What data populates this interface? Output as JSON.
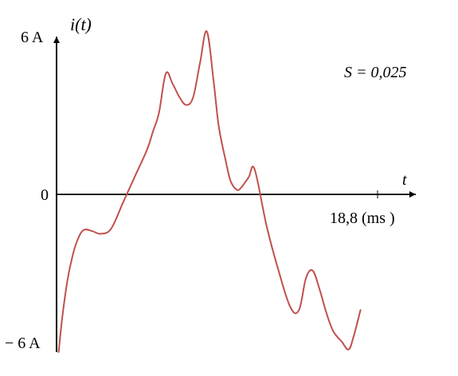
{
  "chart_data": {
    "type": "line",
    "title": "",
    "ylabel": "i(t)",
    "xlabel": "t",
    "y_tick_top": "6 A",
    "y_tick_zero": "0",
    "y_tick_bottom": "− 6 A",
    "x_tick_label": "18,8 (ms )",
    "annotation": "S = 0,025",
    "ylim": [
      -6,
      6
    ],
    "xlim": [
      0,
      18.8
    ],
    "grid": false,
    "line_color": "#c0504d",
    "series": [
      {
        "x": [
          0.12,
          0.35,
          0.63,
          0.95,
          1.25,
          1.6,
          2.1,
          2.6,
          3.2,
          3.9,
          4.6,
          5.3,
          5.65,
          6.0,
          6.4,
          6.8,
          7.2,
          7.6,
          8.0,
          8.4,
          8.8,
          9.2,
          9.5,
          9.9,
          10.2,
          10.55,
          10.8,
          11.25,
          11.6,
          12.3,
          13.0,
          13.7,
          14.2,
          14.6,
          15.0,
          15.4,
          15.8,
          16.2,
          16.7,
          17.1,
          17.4,
          17.8
        ],
        "y": [
          -6.0,
          -4.6,
          -3.3,
          -2.3,
          -1.7,
          -1.35,
          -1.4,
          -1.5,
          -1.3,
          -0.3,
          0.7,
          1.7,
          2.4,
          3.1,
          4.6,
          4.2,
          3.7,
          3.4,
          3.7,
          5.0,
          6.2,
          4.3,
          2.6,
          1.3,
          0.5,
          0.18,
          0.25,
          0.65,
          0.95,
          -1.2,
          -2.9,
          -4.3,
          -4.4,
          -3.2,
          -2.9,
          -3.6,
          -4.5,
          -5.2,
          -5.6,
          -5.9,
          -5.4,
          -4.4
        ]
      }
    ]
  }
}
